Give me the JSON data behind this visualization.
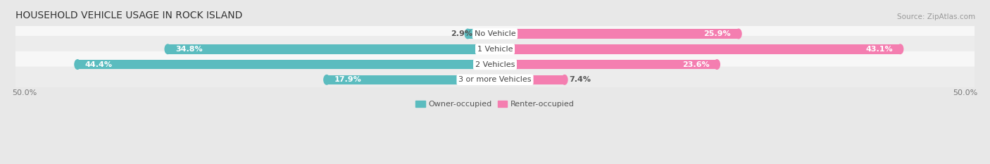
{
  "title": "HOUSEHOLD VEHICLE USAGE IN ROCK ISLAND",
  "source": "Source: ZipAtlas.com",
  "categories": [
    "No Vehicle",
    "1 Vehicle",
    "2 Vehicles",
    "3 or more Vehicles"
  ],
  "owner_values": [
    2.9,
    34.8,
    44.4,
    17.9
  ],
  "renter_values": [
    25.9,
    43.1,
    23.6,
    7.4
  ],
  "owner_color": "#5bbcbf",
  "renter_color": "#f47eb0",
  "owner_label": "Owner-occupied",
  "renter_label": "Renter-occupied",
  "xlim_left": -50,
  "xlim_right": 50,
  "bar_height": 0.62,
  "bg_color": "#e8e8e8",
  "row_light": "#f7f7f7",
  "row_dark": "#ececec",
  "title_fontsize": 10,
  "source_fontsize": 7.5,
  "label_fontsize": 8,
  "value_fontsize": 8,
  "category_fontsize": 8
}
